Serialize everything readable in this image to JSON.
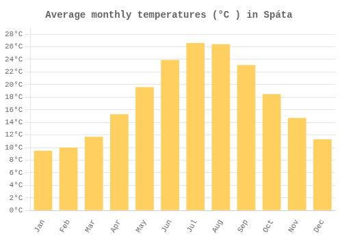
{
  "chart_data": {
    "type": "bar",
    "title": "Average monthly temperatures (°C ) in Spáta",
    "categories": [
      "Jan",
      "Feb",
      "Mar",
      "Apr",
      "May",
      "Jun",
      "Jul",
      "Aug",
      "Sep",
      "Oct",
      "Nov",
      "Dec"
    ],
    "values": [
      9.5,
      10.0,
      11.7,
      15.3,
      19.6,
      23.9,
      26.6,
      26.4,
      23.1,
      18.5,
      14.7,
      11.3
    ],
    "color": "#FFD060",
    "ylim": [
      0,
      29
    ],
    "yticks": [
      {
        "value": 0,
        "label": "0°C"
      },
      {
        "value": 2,
        "label": "2°C"
      },
      {
        "value": 4,
        "label": "4°C"
      },
      {
        "value": 6,
        "label": "6°C"
      },
      {
        "value": 8,
        "label": "8°C"
      },
      {
        "value": 10,
        "label": "10°C"
      },
      {
        "value": 12,
        "label": "12°C"
      },
      {
        "value": 14,
        "label": "14°C"
      },
      {
        "value": 16,
        "label": "16°C"
      },
      {
        "value": 18,
        "label": "18°C"
      },
      {
        "value": 20,
        "label": "20°C"
      },
      {
        "value": 22,
        "label": "22°C"
      },
      {
        "value": 24,
        "label": "24°C"
      },
      {
        "value": 26,
        "label": "26°C"
      },
      {
        "value": 28,
        "label": "28°C"
      }
    ],
    "grid": true
  }
}
